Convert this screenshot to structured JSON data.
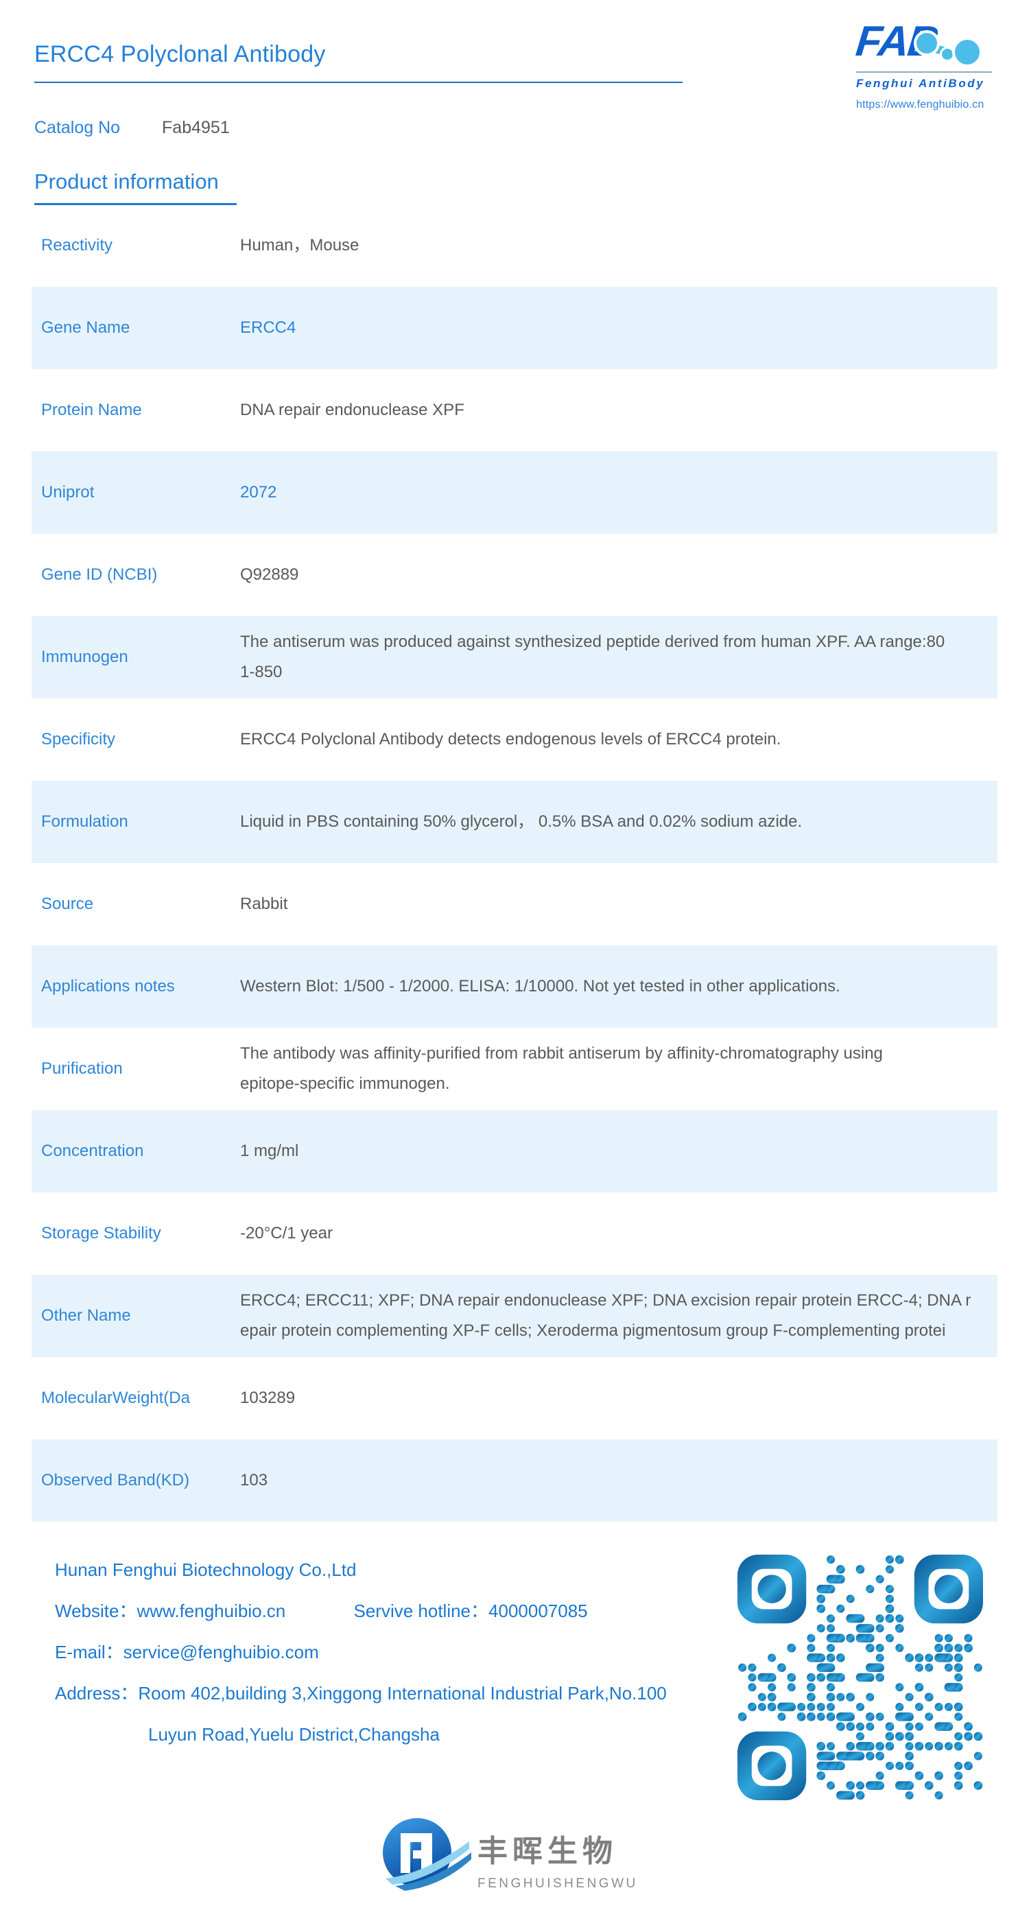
{
  "header": {
    "title": "ERCC4 Polyclonal Antibody",
    "catalog_label": "Catalog No",
    "catalog_value": "Fab4951",
    "section_heading": "Product information"
  },
  "logo": {
    "fab_text": "FAB",
    "brand_line": "Fenghui AntiBody",
    "url": "https://www.fenghuibio.cn"
  },
  "table": {
    "rows": [
      {
        "label": "Reactivity",
        "value_lines": [
          "Human，Mouse"
        ]
      },
      {
        "label": "Gene Name",
        "value_lines": [
          "ERCC4"
        ],
        "value_color": "blue"
      },
      {
        "label": "Protein Name",
        "value_lines": [
          "DNA repair endonuclease XPF"
        ]
      },
      {
        "label": "Uniprot",
        "value_lines": [
          "2072"
        ],
        "value_color": "blue"
      },
      {
        "label": "Gene ID (NCBI)",
        "value_lines": [
          "Q92889"
        ]
      },
      {
        "label": "Immunogen",
        "value_lines": [
          "The antiserum was produced against synthesized peptide derived from human XPF. AA range:80",
          "1-850"
        ]
      },
      {
        "label": "Specificity",
        "value_lines": [
          "ERCC4 Polyclonal Antibody detects endogenous levels of ERCC4 protein."
        ]
      },
      {
        "label": "Formulation",
        "value_lines": [
          "Liquid in PBS containing 50% glycerol， 0.5% BSA and 0.02% sodium azide."
        ]
      },
      {
        "label": "Source",
        "value_lines": [
          "Rabbit"
        ]
      },
      {
        "label": "Applications notes",
        "value_lines": [
          "Western Blot: 1/500 - 1/2000. ELISA: 1/10000. Not yet tested in other applications."
        ]
      },
      {
        "label": "Purification",
        "value_lines": [
          "The antibody was affinity-purified from rabbit antiserum by affinity-chromatography using",
          "epitope-specific immunogen."
        ]
      },
      {
        "label": "Concentration",
        "value_lines": [
          "1 mg/ml"
        ]
      },
      {
        "label": "Storage Stability",
        "value_lines": [
          "-20°C/1 year"
        ]
      },
      {
        "label": "Other Name",
        "value_lines": [
          "ERCC4; ERCC11; XPF; DNA repair endonuclease XPF; DNA excision repair protein ERCC-4; DNA r",
          "epair protein complementing XP-F cells; Xeroderma pigmentosum group F-complementing protei"
        ]
      },
      {
        "label": "MolecularWeight(Da",
        "value_lines": [
          "103289"
        ]
      },
      {
        "label": "Observed Band(KD)",
        "value_lines": [
          "103"
        ]
      }
    ]
  },
  "footer": {
    "company": "Hunan Fenghui Biotechnology Co.,Ltd",
    "website": "Website：www.fenghuibio.cn",
    "hotline": "Servive hotline：4000007085",
    "email": "E-mail：service@fenghuibio.com",
    "address_line1": "Address：Room 402,building 3,Xinggong International Industrial Park,No.100",
    "address_line2": "Luyun Road,Yuelu District,Changsha"
  },
  "bottom_logo": {
    "cn": "丰晖生物",
    "en": "FENGHUISHENGWU"
  },
  "colors": {
    "accent_blue": "#2381d9",
    "label_blue": "#2e86d8",
    "row_highlight": "#e7f3fc",
    "value_gray": "#595959",
    "footer_blue": "#1b78d0",
    "logo_blue": "#1161cd",
    "logo_light_blue": "#4cbde8",
    "qr_dark": "#0a5694",
    "qr_light": "#2fa6dc"
  }
}
